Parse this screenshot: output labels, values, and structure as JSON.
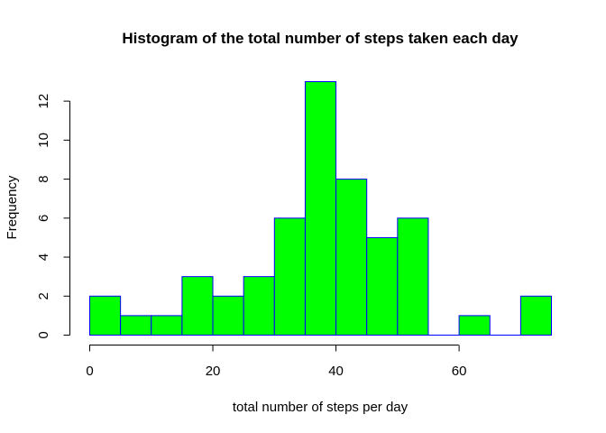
{
  "chart_data": {
    "type": "bar",
    "title": "Histogram of the total number of steps taken each day",
    "xlabel": "total number of steps per day",
    "ylabel": "Frequency",
    "bin_width": 5,
    "bins": [
      {
        "start": 0,
        "end": 5,
        "count": 2
      },
      {
        "start": 5,
        "end": 10,
        "count": 1
      },
      {
        "start": 10,
        "end": 15,
        "count": 1
      },
      {
        "start": 15,
        "end": 20,
        "count": 3
      },
      {
        "start": 20,
        "end": 25,
        "count": 2
      },
      {
        "start": 25,
        "end": 30,
        "count": 3
      },
      {
        "start": 30,
        "end": 35,
        "count": 6
      },
      {
        "start": 35,
        "end": 40,
        "count": 13
      },
      {
        "start": 40,
        "end": 45,
        "count": 8
      },
      {
        "start": 45,
        "end": 50,
        "count": 5
      },
      {
        "start": 50,
        "end": 55,
        "count": 6
      },
      {
        "start": 55,
        "end": 60,
        "count": 0
      },
      {
        "start": 60,
        "end": 65,
        "count": 1
      },
      {
        "start": 65,
        "end": 70,
        "count": 0
      },
      {
        "start": 70,
        "end": 75,
        "count": 2
      }
    ],
    "xlim": [
      0,
      75
    ],
    "ylim": [
      0,
      13
    ],
    "x_ticks": [
      0,
      20,
      40,
      60
    ],
    "y_ticks": [
      0,
      2,
      4,
      6,
      8,
      10,
      12
    ],
    "grid": false,
    "fill_color": "#00ff00",
    "border_color": "#0000ff"
  }
}
